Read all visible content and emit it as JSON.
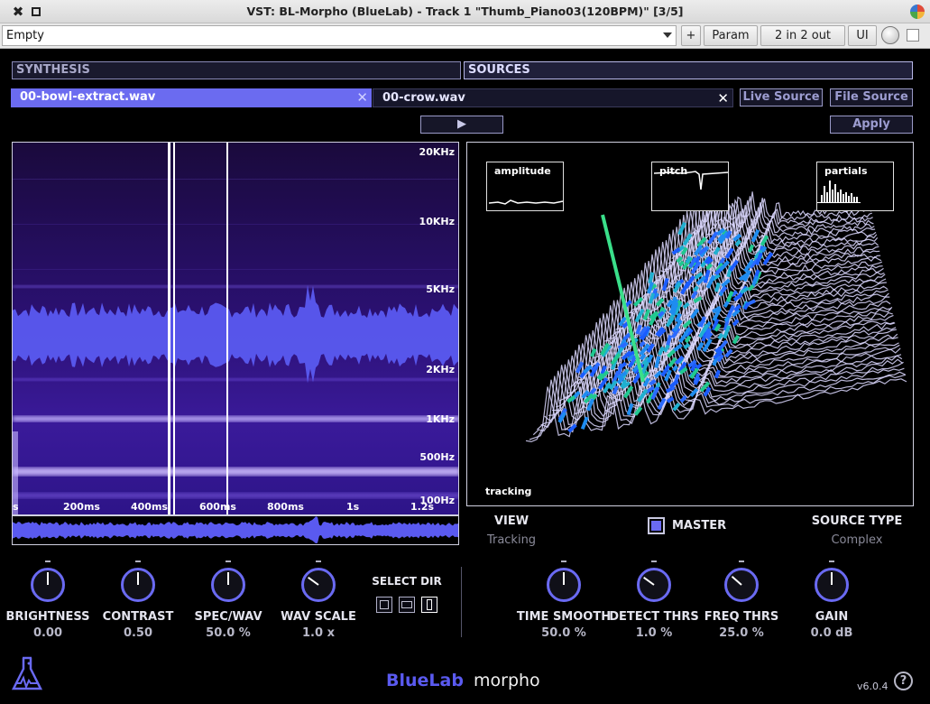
{
  "window": {
    "title": "VST: BL-Morpho (BlueLab) - Track 1 \"Thumb_Piano03(120BPM)\" [3/5]"
  },
  "host": {
    "preset": "Empty",
    "plus_label": "+",
    "param_label": "Param",
    "io_label": "2 in 2 out",
    "ui_label": "UI"
  },
  "plugin": {
    "synthesis_label": "SYNTHESIS",
    "sources_label": "SOURCES",
    "file_tabs": [
      "00-bowl-extract.wav",
      "00-crow.wav"
    ],
    "close_glyph": "✕",
    "live_source_label": "Live Source",
    "file_source_label": "File Source",
    "play_glyph": "▶",
    "apply_label": "Apply",
    "freq_labels": [
      "20KHz",
      "10KHz",
      "5KHz",
      "2KHz",
      "1KHz",
      "500Hz",
      "100Hz"
    ],
    "time_labels": [
      "s",
      "200ms",
      "400ms",
      "600ms",
      "800ms",
      "1s",
      "1.2s"
    ],
    "mini_graphs": [
      "amplitude",
      "pitch",
      "partials"
    ],
    "view3d_caption": "tracking",
    "view_label": "VIEW",
    "view_value": "Tracking",
    "master_label": "MASTER",
    "master_checked": true,
    "source_type_label": "SOURCE TYPE",
    "source_type_value": "Complex",
    "select_dir_label": "SELECT DIR",
    "knobs_left": [
      {
        "name": "BRIGHTNESS",
        "value": "0.00",
        "level": 0.5
      },
      {
        "name": "CONTRAST",
        "value": "0.50",
        "level": 0.5
      },
      {
        "name": "SPEC/WAV",
        "value": "50.0 %",
        "level": 0.5
      },
      {
        "name": "WAV SCALE",
        "value": "1.0 x",
        "level": 0.3
      }
    ],
    "knobs_right": [
      {
        "name": "TIME SMOOTH",
        "value": "50.0 %",
        "level": 0.5
      },
      {
        "name": "DETECT THRS",
        "value": "1.0 %",
        "level": 0.3
      },
      {
        "name": "FREQ THRS",
        "value": "25.0 %",
        "level": 0.32
      },
      {
        "name": "GAIN",
        "value": "0.0 dB",
        "level": 0.5
      }
    ],
    "brand_blue": "BlueLab",
    "brand_white": "morpho",
    "version": "v6.0.4",
    "help_glyph": "?",
    "colors": {
      "accent": "#6a6af2",
      "tab_active": "#6b6bf0",
      "background": "#000000"
    }
  }
}
